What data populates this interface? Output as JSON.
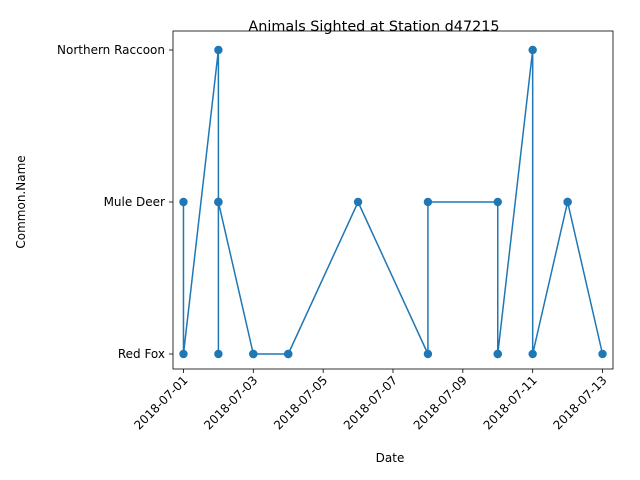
{
  "chart_data": {
    "type": "line",
    "title": "Animals Sighted at Station d47215",
    "xlabel": "Date",
    "ylabel": "Common.Name",
    "categories_y": [
      "Red Fox",
      "Mule Deer",
      "Northern Raccoon"
    ],
    "x_ticks": [
      "2018-07-01",
      "2018-07-03",
      "2018-07-05",
      "2018-07-07",
      "2018-07-09",
      "2018-07-11",
      "2018-07-13"
    ],
    "x_range": [
      "2018-06-30T16:48",
      "2018-07-13T07:12"
    ],
    "grid": false,
    "marker": "circle",
    "series": [
      {
        "color": "#1f77b4",
        "points": [
          {
            "x": "2018-07-01",
            "y": "Mule Deer"
          },
          {
            "x": "2018-07-01",
            "y": "Red Fox"
          },
          {
            "x": "2018-07-02",
            "y": "Northern Raccoon"
          },
          {
            "x": "2018-07-02",
            "y": "Mule Deer"
          },
          {
            "x": "2018-07-02",
            "y": "Mule Deer"
          },
          {
            "x": "2018-07-02",
            "y": "Red Fox"
          },
          {
            "x": "2018-07-02",
            "y": "Mule Deer"
          },
          {
            "x": "2018-07-03",
            "y": "Red Fox"
          },
          {
            "x": "2018-07-03",
            "y": "Red Fox"
          },
          {
            "x": "2018-07-04",
            "y": "Red Fox"
          },
          {
            "x": "2018-07-04",
            "y": "Red Fox"
          },
          {
            "x": "2018-07-06",
            "y": "Mule Deer"
          },
          {
            "x": "2018-07-08",
            "y": "Red Fox"
          },
          {
            "x": "2018-07-08",
            "y": "Mule Deer"
          },
          {
            "x": "2018-07-10",
            "y": "Mule Deer"
          },
          {
            "x": "2018-07-10",
            "y": "Red Fox"
          },
          {
            "x": "2018-07-10",
            "y": "Red Fox"
          },
          {
            "x": "2018-07-11",
            "y": "Northern Raccoon"
          },
          {
            "x": "2018-07-11",
            "y": "Red Fox"
          },
          {
            "x": "2018-07-12",
            "y": "Mule Deer"
          },
          {
            "x": "2018-07-12",
            "y": "Mule Deer"
          },
          {
            "x": "2018-07-13",
            "y": "Red Fox"
          }
        ]
      }
    ]
  }
}
